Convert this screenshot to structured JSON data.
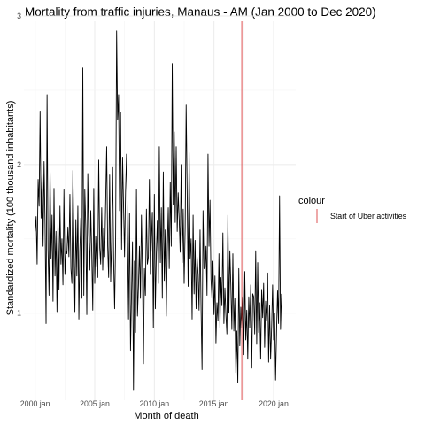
{
  "chart_data": {
    "type": "line",
    "title": "Mortality from traffic injuries, Manaus - AM (Jan 2000 to Dec 2020)",
    "xlabel": "Month of death",
    "ylabel": "Standardized mortality (100 thousand inhabitants)",
    "x_ticks": [
      "2000 jan",
      "2005 jan",
      "2010 jan",
      "2015 jan",
      "2020 jan"
    ],
    "y_ticks": [
      "1",
      "2",
      "3"
    ],
    "xlim": [
      "2000-01",
      "2020-12"
    ],
    "ylim": [
      0.45,
      3.0
    ],
    "grid": true,
    "series": [
      {
        "color": "#000000",
        "start": "2000-01",
        "frequency": "monthly",
        "values": [
          1.55,
          1.65,
          1.33,
          1.9,
          1.72,
          2.36,
          1.64,
          1.95,
          1.45,
          2.02,
          1.6,
          0.93,
          2.47,
          1.42,
          1.12,
          1.98,
          1.37,
          1.66,
          1.08,
          1.84,
          1.25,
          1.55,
          1.01,
          1.62,
          1.16,
          1.72,
          1.33,
          1.5,
          1.19,
          1.83,
          1.26,
          1.42,
          1.4,
          1.58,
          1.38,
          1.8,
          1.3,
          1.2,
          1.96,
          1.48,
          1.01,
          1.63,
          1.25,
          1.72,
          0.96,
          1.42,
          1.64,
          1.1,
          2.65,
          1.12,
          1.83,
          1.58,
          0.99,
          1.94,
          1.54,
          1.29,
          1.69,
          1.4,
          1.02,
          1.84,
          1.2,
          1.52,
          1.32,
          1.24,
          2.03,
          1.44,
          1.33,
          1.71,
          1.29,
          1.57,
          1.38,
          1.75,
          2.12,
          1.45,
          1.24,
          1.93,
          1.21,
          1.49,
          1.98,
          1.36,
          1.03,
          1.5,
          2.9,
          2.3,
          2.47,
          1.69,
          2.35,
          1.43,
          2.05,
          1.72,
          1.38,
          1.82,
          2.07,
          1.53,
          0.96,
          1.67,
          0.75,
          1.12,
          1.48,
          0.48,
          1.35,
          0.87,
          1.83,
          0.98,
          1.18,
          1.45,
          1.1,
          1.66,
          1.3,
          0.66,
          1.3,
          1.12,
          1.7,
          1.33,
          1.38,
          1.9,
          1.26,
          1.49,
          1.68,
          0.9,
          1.8,
          1.03,
          1.4,
          1.62,
          1.2,
          2.12,
          1.34,
          1.71,
          1.1,
          1.95,
          1.22,
          1.56,
          0.98,
          1.42,
          1.71,
          1.3,
          1.88,
          1.45,
          2.68,
          1.73,
          2.22,
          1.61,
          2.12,
          1.55,
          1.81,
          1.63,
          1.41,
          2.0,
          1.34,
          1.7,
          1.2,
          1.57,
          2.4,
          1.83,
          1.18,
          2.08,
          1.37,
          1.5,
          0.96,
          1.66,
          1.13,
          1.49,
          1.03,
          1.38,
          1.26,
          1.02,
          1.56,
          1.04,
          0.62,
          1.69,
          1.3,
          1.3,
          1.45,
          1.12,
          2.07,
          1.45,
          1.76,
          1.23,
          1.1,
          1.35,
          0.99,
          1.25,
          0.8,
          1.07,
          0.95,
          1.4,
          0.9,
          1.24,
          1.05,
          1.54,
          0.93,
          1.17,
          0.99,
          0.86,
          1.66,
          1.0,
          1.42,
          1.18,
          0.89,
          1.4,
          0.88,
          1.1,
          0.6,
          0.88,
          0.53,
          1.3,
          0.78,
          1.04,
          0.9,
          1.11,
          0.72,
          1.28,
          0.82,
          1.02,
          0.69,
          1.11,
          0.9,
          1.19,
          0.63,
          1.13,
          1.11,
          0.86,
          1.42,
          0.79,
          1.34,
          0.87,
          1.07,
          0.69,
          1.16,
          0.97,
          1.2,
          0.77,
          1.08,
          0.95,
          1.27,
          0.67,
          1.05,
          0.69,
          0.9,
          1.19,
          0.82,
          1.0,
          0.55,
          0.88,
          1.15,
          0.93,
          1.79,
          0.89,
          1.13
        ]
      }
    ],
    "vline": {
      "x": "2017-05",
      "color": "#d62728",
      "legend_label": "Start of Uber activities"
    },
    "legend": {
      "title": "colour",
      "position": "right"
    }
  }
}
